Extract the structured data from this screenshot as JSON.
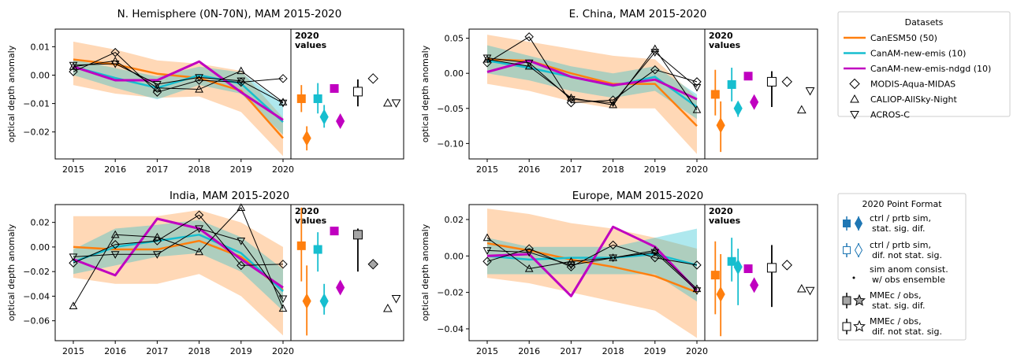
{
  "colors": {
    "canesm": "#ff7f0e",
    "canam_emis": "#17becf",
    "canam_ndgd": "#c000c0",
    "obs": "#000000",
    "mmec_fill": "#a6a6a6"
  },
  "legend_datasets": {
    "title": "Datasets",
    "items": [
      {
        "label": "CanESM50 (50)",
        "kind": "line",
        "color": "#ff7f0e"
      },
      {
        "label": "CanAM-new-emis (10)",
        "kind": "line",
        "color": "#17becf"
      },
      {
        "label": "CanAM-new-emis-ndgd (10)",
        "kind": "line",
        "color": "#c000c0"
      },
      {
        "label": "MODIS-Aqua-MIDAS",
        "kind": "diamond-marker"
      },
      {
        "label": "CALIOP-AllSky-Night",
        "kind": "triangle-up-marker"
      },
      {
        "label": "ACROS-C",
        "kind": "triangle-down-marker"
      }
    ]
  },
  "legend_format": {
    "title": "2020 Point Format",
    "items": [
      {
        "label1": "ctrl / prtb sim,",
        "label2": "stat. sig. dif."
      },
      {
        "label1": "ctrl / prtb sim,",
        "label2": "dif. not stat. sig."
      },
      {
        "label1": "sim anom consist.",
        "label2": "w/ obs ensemble"
      },
      {
        "label1": "MMEc / obs,",
        "label2": "stat. sig. dif."
      },
      {
        "label1": "MMEc / obs,",
        "label2": "dif. not stat. sig."
      }
    ]
  },
  "values_label": [
    "2020",
    "values"
  ],
  "chart_data": [
    {
      "type": "line",
      "title": "N. Hemisphere (0N-70N), MAM 2015-2020",
      "ylabel": "optical depth anomaly",
      "x": [
        2015,
        2016,
        2017,
        2018,
        2019,
        2020
      ],
      "ylim": [
        -0.0295,
        0.0162
      ],
      "yticks": [
        -0.02,
        -0.01,
        0.0,
        0.01
      ],
      "yticklabels": [
        "−0.02",
        "−0.01",
        "0.00",
        "0.01"
      ],
      "series": [
        {
          "name": "CanESM50 (50)",
          "values": [
            0.0055,
            0.0038,
            0.0005,
            -0.001,
            -0.0055,
            -0.0222
          ],
          "band_low": [
            -0.0035,
            -0.0065,
            -0.008,
            -0.0075,
            -0.013,
            -0.0285
          ],
          "band_high": [
            0.0118,
            0.009,
            0.0052,
            0.004,
            0.0015,
            -0.015
          ]
        },
        {
          "name": "CanAM-new-emis (10)",
          "values": [
            0.003,
            -0.001,
            -0.0045,
            0.0,
            -0.003,
            -0.0165
          ],
          "band_low": [
            0.0,
            -0.0045,
            -0.0085,
            -0.0035,
            -0.0065,
            -0.021
          ],
          "band_high": [
            0.0055,
            0.0025,
            -0.0005,
            0.003,
            0.001,
            -0.01
          ]
        },
        {
          "name": "CanAM-new-emis-ndgd (10)",
          "values": [
            0.003,
            -0.0018,
            -0.0018,
            0.0048,
            -0.006,
            -0.0158
          ]
        },
        {
          "name": "MODIS-Aqua-MIDAS",
          "values": [
            0.0012,
            0.008,
            -0.006,
            -0.0018,
            -0.0025,
            -0.0012
          ]
        },
        {
          "name": "CALIOP-AllSky-Night",
          "values": [
            0.003,
            0.005,
            -0.0045,
            -0.005,
            0.0015,
            -0.0095
          ]
        },
        {
          "name": "ACROS-C",
          "values": [
            0.0035,
            0.004,
            -0.0032,
            -0.0008,
            -0.002,
            -0.0098
          ]
        }
      ],
      "values_2020": {
        "canesm_ctrl": {
          "y": -0.0083,
          "lo": -0.013,
          "hi": -0.0035
        },
        "canesm_prtb": {
          "y": -0.0222,
          "lo": -0.0265,
          "hi": -0.018
        },
        "emis_ctrl": {
          "y": -0.0083,
          "lo": -0.0135,
          "hi": -0.0028
        },
        "emis_prtb": {
          "y": -0.0147,
          "lo": -0.0185,
          "hi": -0.0105
        },
        "ndgd_ctrl": {
          "y": -0.0047
        },
        "ndgd_prtb": {
          "y": -0.0162
        },
        "mmec": {
          "y": -0.0058,
          "lo": -0.011,
          "hi": -0.0015
        },
        "modis": {
          "y": -0.0012
        },
        "caliop": {
          "y": -0.0098
        },
        "acros": {
          "y": -0.0098
        }
      }
    },
    {
      "type": "line",
      "title": "E. China, MAM 2015-2020",
      "ylabel": "optical depth anomaly",
      "x": [
        2015,
        2016,
        2017,
        2018,
        2019,
        2020
      ],
      "ylim": [
        -0.122,
        0.063
      ],
      "yticks": [
        -0.1,
        -0.05,
        0.0,
        0.05
      ],
      "yticklabels": [
        "−0.10",
        "−0.05",
        "0.00",
        "0.05"
      ],
      "series": [
        {
          "name": "CanESM50 (50)",
          "values": [
            0.02,
            0.018,
            0.0,
            -0.015,
            -0.015,
            -0.075
          ],
          "band_low": [
            -0.015,
            -0.025,
            -0.04,
            -0.05,
            -0.05,
            -0.115
          ],
          "band_high": [
            0.055,
            0.045,
            0.035,
            0.025,
            0.02,
            -0.035
          ]
        },
        {
          "name": "CanAM-new-emis (10)",
          "values": [
            0.018,
            0.008,
            -0.005,
            -0.018,
            -0.005,
            -0.048
          ],
          "band_low": [
            0.0,
            -0.01,
            -0.025,
            -0.035,
            -0.025,
            -0.065
          ],
          "band_high": [
            0.04,
            0.025,
            0.01,
            0.0,
            0.01,
            -0.03
          ]
        },
        {
          "name": "CanAM-new-emis-ndgd (10)",
          "values": [
            0.002,
            0.018,
            -0.005,
            -0.017,
            -0.009,
            -0.037
          ]
        },
        {
          "name": "MODIS-Aqua-MIDAS",
          "values": [
            0.015,
            0.052,
            -0.042,
            -0.038,
            0.005,
            -0.012
          ]
        },
        {
          "name": "CALIOP-AllSky-Night",
          "values": [
            0.02,
            0.01,
            -0.035,
            -0.045,
            0.035,
            -0.052
          ]
        },
        {
          "name": "ACROS-C",
          "values": [
            0.022,
            0.015,
            -0.037,
            -0.042,
            0.03,
            -0.02
          ]
        }
      ],
      "values_2020": {
        "canesm_ctrl": {
          "y": -0.03,
          "lo": -0.06,
          "hi": 0.005
        },
        "canesm_prtb": {
          "y": -0.074,
          "lo": -0.112,
          "hi": -0.04
        },
        "emis_ctrl": {
          "y": -0.016,
          "lo": -0.04,
          "hi": 0.008
        },
        "emis_prtb": {
          "y": -0.05,
          "lo": -0.062,
          "hi": -0.04
        },
        "ndgd_ctrl": {
          "y": -0.004
        },
        "ndgd_prtb": {
          "y": -0.041
        },
        "mmec": {
          "y": -0.012,
          "lo": -0.048,
          "hi": 0.003
        },
        "modis": {
          "y": -0.012
        },
        "caliop": {
          "y": -0.052
        },
        "acros": {
          "y": -0.025
        }
      }
    },
    {
      "type": "line",
      "title": "India, MAM 2015-2020",
      "ylabel": "optical depth anomaly",
      "x": [
        2015,
        2016,
        2017,
        2018,
        2019,
        2020
      ],
      "ylim": [
        -0.0762,
        0.0345
      ],
      "yticks": [
        -0.06,
        -0.04,
        -0.02,
        0.0,
        0.02
      ],
      "yticklabels": [
        "−0.06",
        "−0.04",
        "−0.02",
        "0.00",
        "0.02"
      ],
      "series": [
        {
          "name": "CanESM50 (50)",
          "values": [
            0.0,
            -0.002,
            -0.002,
            0.005,
            -0.008,
            -0.035
          ],
          "band_low": [
            -0.025,
            -0.03,
            -0.03,
            -0.022,
            -0.04,
            -0.072
          ],
          "band_high": [
            0.025,
            0.025,
            0.025,
            0.03,
            0.02,
            0.0
          ]
        },
        {
          "name": "CanAM-new-emis (10)",
          "values": [
            -0.012,
            0.0,
            0.005,
            0.01,
            -0.005,
            -0.036
          ],
          "band_low": [
            -0.022,
            -0.015,
            -0.008,
            -0.005,
            -0.02,
            -0.052
          ],
          "band_high": [
            -0.002,
            0.015,
            0.018,
            0.022,
            0.008,
            -0.018
          ]
        },
        {
          "name": "CanAM-new-emis-ndgd (10)",
          "values": [
            -0.01,
            -0.023,
            0.023,
            0.015,
            -0.01,
            -0.033
          ]
        },
        {
          "name": "MODIS-Aqua-MIDAS",
          "values": [
            -0.013,
            0.002,
            0.005,
            0.026,
            -0.015,
            -0.014
          ]
        },
        {
          "name": "CALIOP-AllSky-Night",
          "values": [
            -0.048,
            0.01,
            0.008,
            -0.004,
            0.032,
            -0.05
          ]
        },
        {
          "name": "ACROS-C",
          "values": [
            -0.008,
            -0.006,
            -0.006,
            0.015,
            0.005,
            -0.042
          ]
        }
      ],
      "values_2020": {
        "canesm_ctrl": {
          "y": 0.001,
          "lo": -0.028,
          "hi": 0.032
        },
        "canesm_prtb": {
          "y": -0.044,
          "lo": -0.072,
          "hi": -0.015
        },
        "emis_ctrl": {
          "y": -0.002,
          "lo": -0.02,
          "hi": 0.012
        },
        "emis_prtb": {
          "y": -0.044,
          "lo": -0.055,
          "hi": -0.03
        },
        "ndgd_ctrl": {
          "y": 0.013
        },
        "ndgd_prtb": {
          "y": -0.033
        },
        "mmec": {
          "y": 0.01,
          "lo": -0.02,
          "hi": 0.015
        },
        "modis": {
          "y": -0.014
        },
        "caliop": {
          "y": -0.05
        },
        "acros": {
          "y": -0.042
        }
      }
    },
    {
      "type": "line",
      "title": "Europe, MAM 2015-2020",
      "ylabel": "optical depth anomaly",
      "x": [
        2015,
        2016,
        2017,
        2018,
        2019,
        2020
      ],
      "ylim": [
        -0.0465,
        0.0282
      ],
      "yticks": [
        -0.04,
        -0.02,
        0.0,
        0.02
      ],
      "yticklabels": [
        "−0.04",
        "−0.02",
        "0.00",
        "0.02"
      ],
      "series": [
        {
          "name": "CanESM50 (50)",
          "values": [
            0.007,
            0.003,
            -0.002,
            -0.006,
            -0.011,
            -0.02
          ],
          "band_low": [
            -0.012,
            -0.015,
            -0.02,
            -0.025,
            -0.03,
            -0.045
          ],
          "band_high": [
            0.026,
            0.023,
            0.018,
            0.015,
            0.01,
            0.004
          ]
        },
        {
          "name": "CanAM-new-emis (10)",
          "values": [
            0.0,
            -0.002,
            -0.001,
            -0.001,
            0.001,
            -0.005
          ],
          "band_low": [
            -0.01,
            -0.01,
            -0.01,
            -0.01,
            -0.01,
            -0.025
          ],
          "band_high": [
            0.01,
            0.005,
            0.005,
            0.005,
            0.01,
            0.015
          ]
        },
        {
          "name": "CanAM-new-emis-ndgd (10)",
          "values": [
            0.0,
            0.001,
            -0.022,
            0.016,
            0.005,
            -0.019
          ]
        },
        {
          "name": "MODIS-Aqua-MIDAS",
          "values": [
            -0.003,
            0.004,
            -0.006,
            0.006,
            -0.001,
            -0.005
          ]
        },
        {
          "name": "CALIOP-AllSky-Night",
          "values": [
            0.01,
            -0.007,
            -0.003,
            -0.001,
            0.003,
            -0.018
          ]
        },
        {
          "name": "ACROS-C",
          "values": [
            0.003,
            0.002,
            -0.005,
            -0.001,
            0.002,
            -0.019
          ]
        }
      ],
      "values_2020": {
        "canesm_ctrl": {
          "y": -0.0105,
          "lo": -0.032,
          "hi": 0.008
        },
        "canesm_prtb": {
          "y": -0.021,
          "lo": -0.044,
          "hi": 0.001
        },
        "emis_ctrl": {
          "y": -0.003,
          "lo": -0.014,
          "hi": 0.01
        },
        "emis_prtb": {
          "y": -0.006,
          "lo": -0.027,
          "hi": 0.004
        },
        "ndgd_ctrl": {
          "y": -0.007
        },
        "ndgd_prtb": {
          "y": -0.016
        },
        "mmec": {
          "y": -0.0065,
          "lo": -0.028,
          "hi": 0.006
        },
        "modis": {
          "y": -0.005
        },
        "caliop": {
          "y": -0.018
        },
        "acros": {
          "y": -0.019
        }
      }
    }
  ]
}
